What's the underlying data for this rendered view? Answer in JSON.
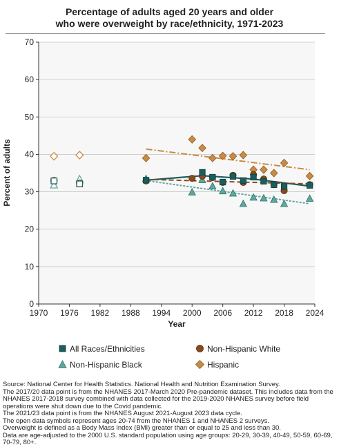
{
  "title_line1": "Percentage of adults aged 20 years and older",
  "title_line2": "who were overweight by race/ethnicity, 1971-2023",
  "colors": {
    "all": "#1b5e5e",
    "white": "#8b4a1c",
    "black": "#5fa8a0",
    "hispanic": "#c98b45"
  },
  "chart_data": {
    "type": "scatter",
    "xlabel": "Year",
    "ylabel": "Percent of adults",
    "xlim": [
      1970,
      2024
    ],
    "ylim": [
      0,
      70
    ],
    "xticks": [
      1970,
      1976,
      1982,
      1988,
      1994,
      2000,
      2006,
      2012,
      2018,
      2024
    ],
    "yticks": [
      0,
      10,
      20,
      30,
      40,
      50,
      60,
      70
    ],
    "grid": true,
    "series": [
      {
        "name": "All Races/Ethnicities",
        "key": "all",
        "marker": "square",
        "open_points": [
          [
            1973,
            32.9
          ],
          [
            1978,
            32.1
          ]
        ],
        "points": [
          [
            1991,
            33.1
          ],
          [
            2002,
            35.2
          ],
          [
            2004,
            33.9
          ],
          [
            2006,
            32.6
          ],
          [
            2008,
            34.1
          ],
          [
            2010,
            33.0
          ],
          [
            2012,
            33.9
          ],
          [
            2014,
            32.8
          ],
          [
            2016,
            31.9
          ],
          [
            2018,
            31.4
          ],
          [
            2023,
            31.7
          ]
        ],
        "trend": [
          [
            1991,
            33.1
          ],
          [
            2002,
            34.3
          ],
          [
            2012,
            33.4
          ],
          [
            2023,
            31.5
          ]
        ],
        "trend_style": "solid"
      },
      {
        "name": "Non-Hispanic White",
        "key": "white",
        "marker": "circle",
        "open_points": [
          [
            1973,
            33.0
          ],
          [
            1978,
            32.3
          ]
        ],
        "points": [
          [
            1991,
            32.9
          ],
          [
            2000,
            33.6
          ],
          [
            2002,
            34.2
          ],
          [
            2004,
            33.8
          ],
          [
            2006,
            32.5
          ],
          [
            2008,
            34.4
          ],
          [
            2010,
            32.5
          ],
          [
            2012,
            34.6
          ],
          [
            2014,
            33.4
          ],
          [
            2016,
            31.9
          ],
          [
            2018,
            30.3
          ],
          [
            2023,
            31.9
          ]
        ],
        "trend": [
          [
            1991,
            33.3
          ],
          [
            2023,
            32.1
          ]
        ],
        "trend_style": "dash"
      },
      {
        "name": "Non-Hispanic Black",
        "key": "black",
        "marker": "triangle",
        "open_points": [
          [
            1973,
            31.8
          ],
          [
            1978,
            33.4
          ]
        ],
        "points": [
          [
            1991,
            33.5
          ],
          [
            2000,
            29.9
          ],
          [
            2002,
            33.2
          ],
          [
            2004,
            31.5
          ],
          [
            2006,
            30.2
          ],
          [
            2008,
            29.6
          ],
          [
            2010,
            26.8
          ],
          [
            2012,
            28.5
          ],
          [
            2014,
            28.3
          ],
          [
            2016,
            27.9
          ],
          [
            2018,
            26.8
          ],
          [
            2023,
            28.2
          ]
        ],
        "trend": [
          [
            1991,
            33.0
          ],
          [
            2023,
            26.8
          ]
        ],
        "trend_style": "dot"
      },
      {
        "name": "Hispanic",
        "key": "hispanic",
        "marker": "diamond",
        "open_points": [
          [
            1973,
            39.5
          ],
          [
            1978,
            39.8
          ]
        ],
        "points": [
          [
            1991,
            39.0
          ],
          [
            2000,
            44.0
          ],
          [
            2002,
            41.7
          ],
          [
            2004,
            39.0
          ],
          [
            2006,
            39.6
          ],
          [
            2008,
            39.5
          ],
          [
            2010,
            39.8
          ],
          [
            2012,
            35.9
          ],
          [
            2014,
            35.9
          ],
          [
            2016,
            35.0
          ],
          [
            2018,
            37.7
          ],
          [
            2023,
            34.2
          ]
        ],
        "trend": [
          [
            1991,
            41.4
          ],
          [
            2023,
            35.9
          ]
        ],
        "trend_style": "dashdot"
      }
    ],
    "legend_placement": "bottom"
  },
  "notes": [
    "Source: National Center for Health Statistics. National Health and Nutrition Examination Survey.",
    "The 2017/20 data point is from the NHANES 2017-March 2020 Pre-pandemic dataset. This includes data from the NHANES 2017-2018 survey combined with data collected for the 2019-2020 NHANES survey before field operations were shut down due to the Covid pandemic.",
    "The 2021/23 data point is from the NHANES August 2021-August 2023 data cycle.",
    "The open data symbols represent ages 20-74 from the NHANES 1 and NHANES 2 surveys.",
    "Overweight is defined as a Body Mass Index (BMI) greater than or equal to 25 and less than 30.",
    "Data are age-adjusted to the 2000 U.S. standard population using age groups: 20-29, 30-39, 40-49, 50-59, 60-69, 70-79, 80+."
  ]
}
